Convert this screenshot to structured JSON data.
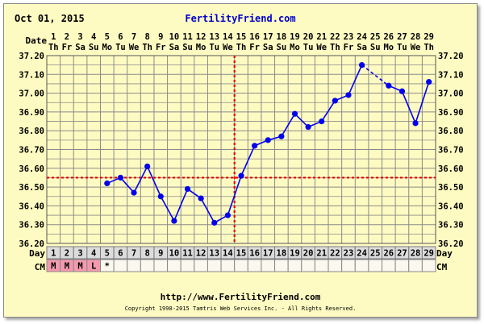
{
  "header": {
    "date": "Oct 01, 2015",
    "brand": "FertilityFriend.com"
  },
  "labels": {
    "date_row": "Date",
    "day_row": "Day",
    "cm_row": "CM"
  },
  "footer": {
    "url": "http://www.FertilityFriend.com",
    "copyright": "Copyright 1998-2015 Tamtris Web Services Inc. - All Rights Reserved."
  },
  "colors": {
    "background": "#fefbc2",
    "grid": "#8a8a8a",
    "series": "#0000ee",
    "coverline": "#ee0000",
    "brand": "#0000cc",
    "menses_cell": "#f49aae",
    "day_cell": "#dcdcdc"
  },
  "chart_data": {
    "type": "line",
    "title": "",
    "xlabel": "Day",
    "ylabel": "",
    "x": [
      1,
      2,
      3,
      4,
      5,
      6,
      7,
      8,
      9,
      10,
      11,
      12,
      13,
      14,
      15,
      16,
      17,
      18,
      19,
      20,
      21,
      22,
      23,
      24,
      25,
      26,
      27,
      28,
      29
    ],
    "x_dates": [
      "1",
      "2",
      "3",
      "4",
      "5",
      "6",
      "7",
      "8",
      "9",
      "10",
      "11",
      "12",
      "13",
      "14",
      "15",
      "16",
      "17",
      "18",
      "19",
      "20",
      "21",
      "22",
      "23",
      "24",
      "25",
      "26",
      "27",
      "28",
      "29"
    ],
    "x_weekdays": [
      "Th",
      "Fr",
      "Sa",
      "Su",
      "Mo",
      "Tu",
      "We",
      "Th",
      "Fr",
      "Sa",
      "Su",
      "Mo",
      "Tu",
      "We",
      "Th",
      "Fr",
      "Sa",
      "Su",
      "Mo",
      "Tu",
      "We",
      "Th",
      "Fr",
      "Sa",
      "Su",
      "Mo",
      "Tu",
      "We",
      "Th"
    ],
    "xlim": [
      1,
      29
    ],
    "y_ticks": [
      "36.20",
      "36.30",
      "36.40",
      "36.50",
      "36.60",
      "36.70",
      "36.80",
      "36.90",
      "37.00",
      "37.10",
      "37.20"
    ],
    "ylim": [
      36.2,
      37.2
    ],
    "series": [
      {
        "values": [
          null,
          null,
          null,
          null,
          36.52,
          36.55,
          36.47,
          36.61,
          36.45,
          36.32,
          36.49,
          36.44,
          36.31,
          36.35,
          36.56,
          36.72,
          36.75,
          36.77,
          36.89,
          36.82,
          36.85,
          36.96,
          36.99,
          37.15,
          null,
          37.04,
          37.01,
          36.84,
          37.06
        ],
        "dashed_gaps": [
          [
            24,
            26
          ]
        ]
      }
    ],
    "coverline": 36.55,
    "ovulation_day": 14,
    "cycle_days": [
      "1",
      "2",
      "3",
      "4",
      "5",
      "6",
      "7",
      "8",
      "9",
      "10",
      "11",
      "12",
      "13",
      "14",
      "15",
      "16",
      "17",
      "18",
      "19",
      "20",
      "21",
      "22",
      "23",
      "24",
      "25",
      "26",
      "27",
      "28",
      "29"
    ],
    "cm": [
      "M",
      "M",
      "M",
      "L",
      "*",
      "",
      "",
      "",
      "",
      "",
      "",
      "",
      "",
      "",
      "",
      "",
      "",
      "",
      "",
      "",
      "",
      "",
      "",
      "",
      "",
      "",
      "",
      "",
      ""
    ],
    "menses_days": [
      1,
      2,
      3,
      4
    ],
    "grid": true
  }
}
